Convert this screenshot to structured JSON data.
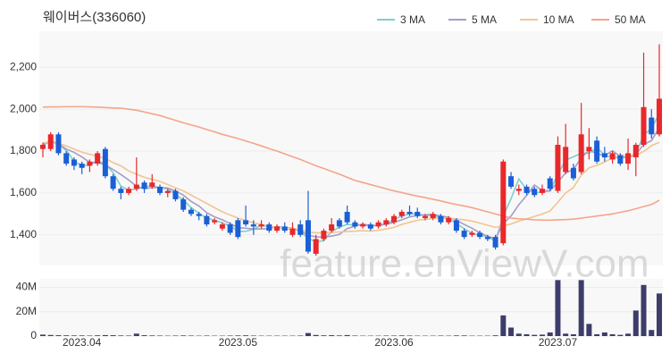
{
  "chart_data": {
    "type": "candlestick",
    "title": "웨이버스(336060)",
    "watermark": "feature.enViewV.com",
    "categories": [
      null,
      null,
      null,
      null,
      null,
      "2023.04",
      null,
      null,
      null,
      null,
      null,
      null,
      null,
      null,
      null,
      null,
      null,
      null,
      null,
      null,
      null,
      null,
      null,
      null,
      null,
      "2023.05",
      null,
      null,
      null,
      null,
      null,
      null,
      null,
      null,
      null,
      null,
      null,
      null,
      null,
      null,
      null,
      null,
      null,
      null,
      null,
      "2023.06",
      null,
      null,
      null,
      null,
      null,
      null,
      null,
      null,
      null,
      null,
      null,
      null,
      null,
      null,
      null,
      null,
      null,
      null,
      null,
      null,
      "2023.07",
      null,
      null,
      null,
      null,
      null,
      null,
      null,
      null,
      null,
      null,
      null,
      null,
      null
    ],
    "open": [
      1810,
      1810,
      1880,
      1790,
      1760,
      1740,
      1730,
      1740,
      1810,
      1680,
      1620,
      1600,
      1620,
      1650,
      1630,
      1630,
      1600,
      1610,
      1570,
      1520,
      1500,
      1490,
      1460,
      1430,
      1450,
      1470,
      1470,
      1450,
      1440,
      1450,
      1420,
      1440,
      1400,
      1450,
      1470,
      1310,
      1380,
      1420,
      1470,
      1510,
      1460,
      1440,
      1450,
      1440,
      1450,
      1460,
      1490,
      1510,
      1510,
      1480,
      1480,
      1490,
      1460,
      1470,
      1420,
      1400,
      1410,
      1390,
      1390,
      1360,
      1680,
      1610,
      1630,
      1620,
      1600,
      1670,
      1610,
      1700,
      1720,
      1700,
      1800,
      1850,
      1790,
      1760,
      1780,
      1740,
      1770,
      1830,
      1960,
      1880
    ],
    "high": [
      1840,
      1890,
      1890,
      1800,
      1770,
      1750,
      1760,
      1800,
      1820,
      1690,
      1630,
      1630,
      1770,
      1660,
      1690,
      1640,
      1620,
      1620,
      1580,
      1530,
      1510,
      1500,
      1480,
      1460,
      1460,
      1480,
      1540,
      1470,
      1470,
      1460,
      1450,
      1460,
      1460,
      1470,
      1610,
      1400,
      1430,
      1480,
      1480,
      1540,
      1470,
      1460,
      1460,
      1470,
      1480,
      1500,
      1520,
      1540,
      1530,
      1500,
      1510,
      1500,
      1490,
      1480,
      1430,
      1420,
      1420,
      1400,
      1400,
      1760,
      1700,
      1640,
      1640,
      1630,
      1640,
      1680,
      1870,
      1930,
      1740,
      2030,
      1910,
      1870,
      1820,
      1800,
      1790,
      1860,
      1840,
      2270,
      2000,
      2310
    ],
    "low": [
      1770,
      1800,
      1780,
      1730,
      1710,
      1690,
      1700,
      1730,
      1670,
      1610,
      1570,
      1590,
      1610,
      1600,
      1620,
      1590,
      1580,
      1560,
      1510,
      1490,
      1470,
      1440,
      1450,
      1420,
      1400,
      1380,
      1440,
      1400,
      1430,
      1410,
      1410,
      1410,
      1390,
      1390,
      1310,
      1300,
      1370,
      1410,
      1430,
      1450,
      1430,
      1430,
      1420,
      1430,
      1440,
      1450,
      1480,
      1490,
      1480,
      1470,
      1470,
      1450,
      1450,
      1410,
      1380,
      1390,
      1380,
      1370,
      1330,
      1350,
      1620,
      1590,
      1590,
      1580,
      1590,
      1610,
      1600,
      1690,
      1660,
      1690,
      1760,
      1740,
      1750,
      1740,
      1730,
      1710,
      1680,
      1820,
      1860,
      1870
    ],
    "close": [
      1830,
      1880,
      1790,
      1740,
      1730,
      1720,
      1750,
      1790,
      1680,
      1620,
      1600,
      1620,
      1640,
      1620,
      1650,
      1600,
      1610,
      1570,
      1520,
      1500,
      1490,
      1450,
      1470,
      1450,
      1410,
      1390,
      1450,
      1440,
      1450,
      1420,
      1440,
      1420,
      1430,
      1400,
      1320,
      1380,
      1420,
      1450,
      1440,
      1460,
      1440,
      1450,
      1430,
      1460,
      1470,
      1490,
      1510,
      1500,
      1490,
      1490,
      1500,
      1460,
      1480,
      1420,
      1390,
      1410,
      1390,
      1380,
      1340,
      1750,
      1630,
      1620,
      1600,
      1590,
      1620,
      1620,
      1830,
      1820,
      1670,
      1880,
      1820,
      1750,
      1770,
      1790,
      1740,
      1790,
      1830,
      2010,
      1880,
      2050
    ],
    "up_color": "#e8282b",
    "down_color": "#1a5fd6",
    "ylim": [
      1254,
      2372
    ],
    "yticks": [
      {
        "value": 1400,
        "label": "1,400"
      },
      {
        "value": 1600,
        "label": "1,600"
      },
      {
        "value": 1800,
        "label": "1,800"
      },
      {
        "value": 2000,
        "label": "2,000"
      },
      {
        "value": 2200,
        "label": "2,200"
      }
    ],
    "grid": true,
    "legend": "top-right",
    "ma": [
      {
        "name": "3 MA",
        "color": "#7ecfcf",
        "values": [
          1830,
          1850,
          1833,
          1803,
          1753,
          1730,
          1733,
          1753,
          1740,
          1697,
          1633,
          1613,
          1620,
          1627,
          1637,
          1623,
          1620,
          1593,
          1567,
          1530,
          1503,
          1480,
          1470,
          1457,
          1443,
          1417,
          1417,
          1427,
          1447,
          1437,
          1437,
          1427,
          1430,
          1417,
          1383,
          1367,
          1373,
          1417,
          1437,
          1450,
          1447,
          1450,
          1440,
          1447,
          1453,
          1473,
          1490,
          1500,
          1500,
          1493,
          1493,
          1483,
          1480,
          1453,
          1430,
          1407,
          1397,
          1393,
          1370,
          1490,
          1573,
          1667,
          1617,
          1603,
          1603,
          1610,
          1690,
          1757,
          1773,
          1790,
          1790,
          1817,
          1780,
          1770,
          1767,
          1773,
          1787,
          1877,
          1907,
          1980
        ]
      },
      {
        "name": "5 MA",
        "color": "#a89cc8",
        "values": [
          1830,
          1845,
          1833,
          1810,
          1794,
          1772,
          1746,
          1746,
          1734,
          1712,
          1688,
          1662,
          1632,
          1620,
          1626,
          1626,
          1624,
          1610,
          1590,
          1560,
          1538,
          1506,
          1486,
          1472,
          1454,
          1434,
          1432,
          1428,
          1428,
          1430,
          1440,
          1434,
          1432,
          1422,
          1398,
          1390,
          1390,
          1394,
          1402,
          1430,
          1442,
          1452,
          1444,
          1446,
          1450,
          1460,
          1472,
          1486,
          1492,
          1496,
          1498,
          1490,
          1484,
          1470,
          1450,
          1432,
          1410,
          1394,
          1382,
          1454,
          1490,
          1544,
          1588,
          1638,
          1612,
          1610,
          1652,
          1696,
          1712,
          1768,
          1804,
          1788,
          1778,
          1802,
          1774,
          1768,
          1784,
          1832,
          1850,
          1912
        ]
      },
      {
        "name": "10 MA",
        "color": "#f2c490",
        "values": [
          1840,
          1840,
          1835,
          1825,
          1810,
          1795,
          1785,
          1775,
          1765,
          1745,
          1730,
          1705,
          1690,
          1675,
          1665,
          1655,
          1640,
          1625,
          1610,
          1590,
          1570,
          1550,
          1530,
          1510,
          1495,
          1480,
          1468,
          1458,
          1450,
          1440,
          1436,
          1432,
          1430,
          1425,
          1414,
          1410,
          1410,
          1412,
          1414,
          1416,
          1418,
          1420,
          1418,
          1422,
          1428,
          1436,
          1450,
          1460,
          1470,
          1474,
          1478,
          1480,
          1478,
          1476,
          1472,
          1466,
          1456,
          1446,
          1436,
          1444,
          1452,
          1466,
          1476,
          1488,
          1500,
          1514,
          1556,
          1600,
          1626,
          1686,
          1720,
          1732,
          1748,
          1768,
          1782,
          1778,
          1780,
          1798,
          1826,
          1842
        ]
      },
      {
        "name": "50 MA",
        "color": "#f4a58a",
        "values": [
          2010,
          2011,
          2011,
          2012,
          2012,
          2012,
          2011,
          2010,
          2008,
          2006,
          2005,
          2000,
          1995,
          1987,
          1978,
          1970,
          1958,
          1947,
          1935,
          1925,
          1915,
          1903,
          1892,
          1880,
          1870,
          1860,
          1848,
          1837,
          1825,
          1812,
          1800,
          1787,
          1773,
          1760,
          1745,
          1730,
          1717,
          1703,
          1690,
          1675,
          1660,
          1650,
          1640,
          1630,
          1620,
          1610,
          1602,
          1593,
          1585,
          1578,
          1570,
          1562,
          1553,
          1545,
          1538,
          1530,
          1520,
          1510,
          1500,
          1490,
          1480,
          1477,
          1475,
          1472,
          1471,
          1470,
          1472,
          1473,
          1475,
          1480,
          1485,
          1490,
          1495,
          1500,
          1508,
          1515,
          1525,
          1535,
          1545,
          1565
        ]
      }
    ],
    "volume": {
      "color": "#3d3d6b",
      "ylim": [
        0,
        47000000
      ],
      "yticks": [
        0,
        {
          "value": 20000000,
          "label": "20M"
        },
        {
          "value": 40000000,
          "label": "40M"
        }
      ],
      "values": [
        1200000,
        900000,
        700000,
        600000,
        500000,
        500000,
        400000,
        600000,
        800000,
        700000,
        500000,
        400000,
        2000000,
        700000,
        500000,
        400000,
        300000,
        400000,
        500000,
        400000,
        300000,
        400000,
        300000,
        300000,
        400000,
        500000,
        600000,
        400000,
        300000,
        300000,
        300000,
        300000,
        300000,
        400000,
        2500000,
        900000,
        600000,
        700000,
        500000,
        800000,
        400000,
        300000,
        300000,
        300000,
        400000,
        400000,
        500000,
        400000,
        300000,
        300000,
        300000,
        400000,
        300000,
        500000,
        500000,
        300000,
        300000,
        300000,
        600000,
        17000000,
        7000000,
        2000000,
        1500000,
        1000000,
        1200000,
        3000000,
        46000000,
        2000000,
        1500000,
        46000000,
        10000000,
        1500000,
        3000000,
        1500000,
        1000000,
        2000000,
        21000000,
        42000000,
        5000000,
        35000000
      ]
    }
  }
}
